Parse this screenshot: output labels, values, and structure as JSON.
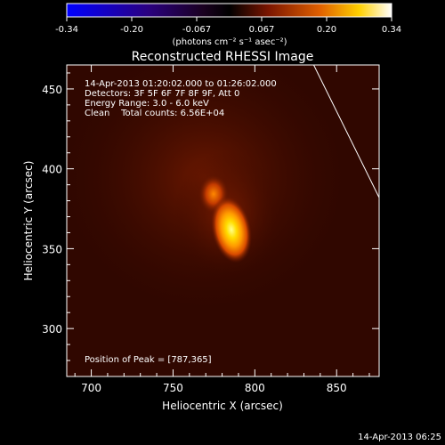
{
  "chart_data": {
    "type": "heatmap",
    "title": "Reconstructed RHESSI Image",
    "xlabel": "Heliocentric X (arcsec)",
    "ylabel": "Heliocentric Y (arcsec)",
    "xlim": [
      685,
      876
    ],
    "ylim": [
      270,
      465
    ],
    "x_ticks": [
      700,
      750,
      800,
      850
    ],
    "y_ticks": [
      300,
      350,
      400,
      450
    ],
    "colorbar": {
      "ticks": [
        "-0.34",
        "-0.20",
        "-0.067",
        "0.067",
        "0.20",
        "0.34"
      ],
      "unit_label": "(photons cm⁻² s⁻¹ asec⁻²)",
      "min": -0.34,
      "max": 0.34
    },
    "annotations": [
      "14-Apr-2013 01:20:02.000 to 01:26:02.000",
      "Detectors: 3F 5F 6F 7F 8F 9F, Att 0",
      "Energy Range: 3.0 - 6.0 keV",
      "Clean    Total counts: 6.56E+04"
    ],
    "peak_label": "Position of Peak = [787,365]",
    "peak": [
      787,
      365
    ],
    "timestamp": "14-Apr-2013 06:25",
    "limb_line": {
      "from": [
        836,
        465
      ],
      "to": [
        876,
        382
      ]
    },
    "colors": {
      "background": "#000000",
      "text": "#ffffff"
    }
  }
}
